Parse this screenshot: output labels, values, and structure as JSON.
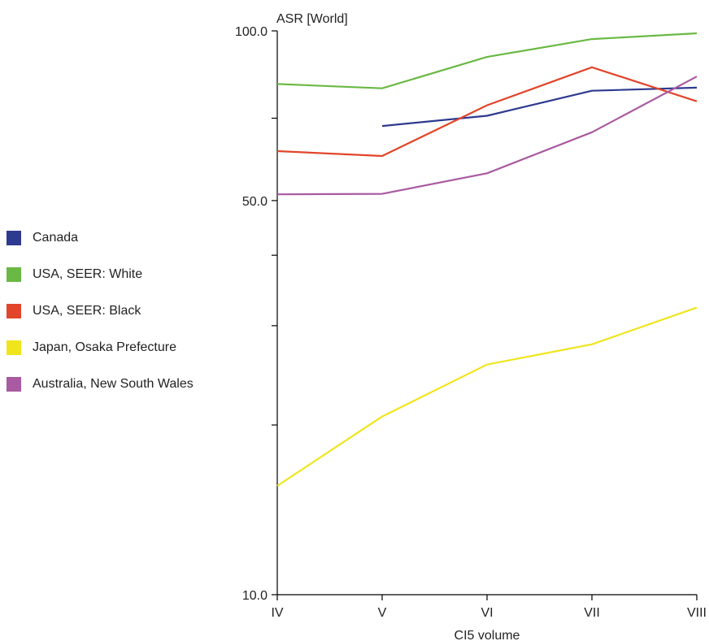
{
  "chart_data": {
    "type": "line",
    "ylabel": "ASR [World]",
    "xlabel": "CI5 volume",
    "y_scale": "log",
    "ylim": [
      10.0,
      100.0
    ],
    "yticks_labeled": [
      "10.0",
      "50.0",
      "100.0"
    ],
    "yticks_minor": [
      20,
      30,
      40,
      70
    ],
    "categories": [
      "IV",
      "V",
      "VI",
      "VII",
      "VIII"
    ],
    "legend_position": "left",
    "grid": false,
    "series": [
      {
        "name": "Canada",
        "color": "#2e3a8f",
        "values": [
          null,
          67.8,
          70.7,
          78.3,
          79.3
        ]
      },
      {
        "name": "USA, SEER: White",
        "color": "#6ab944",
        "values": [
          80.5,
          79.1,
          89.9,
          96.7,
          99.0
        ]
      },
      {
        "name": "USA, SEER: Black",
        "color": "#e2452b",
        "values": [
          61.2,
          60.0,
          73.8,
          86.2,
          75.0
        ]
      },
      {
        "name": "Japan, Osaka Prefecture",
        "color": "#f0e51c",
        "values": [
          15.6,
          20.7,
          25.6,
          27.8,
          32.3
        ]
      },
      {
        "name": "Australia, New South Wales",
        "color": "#a95aa1",
        "values": [
          51.3,
          51.4,
          55.9,
          66.1,
          83.0
        ]
      }
    ]
  }
}
